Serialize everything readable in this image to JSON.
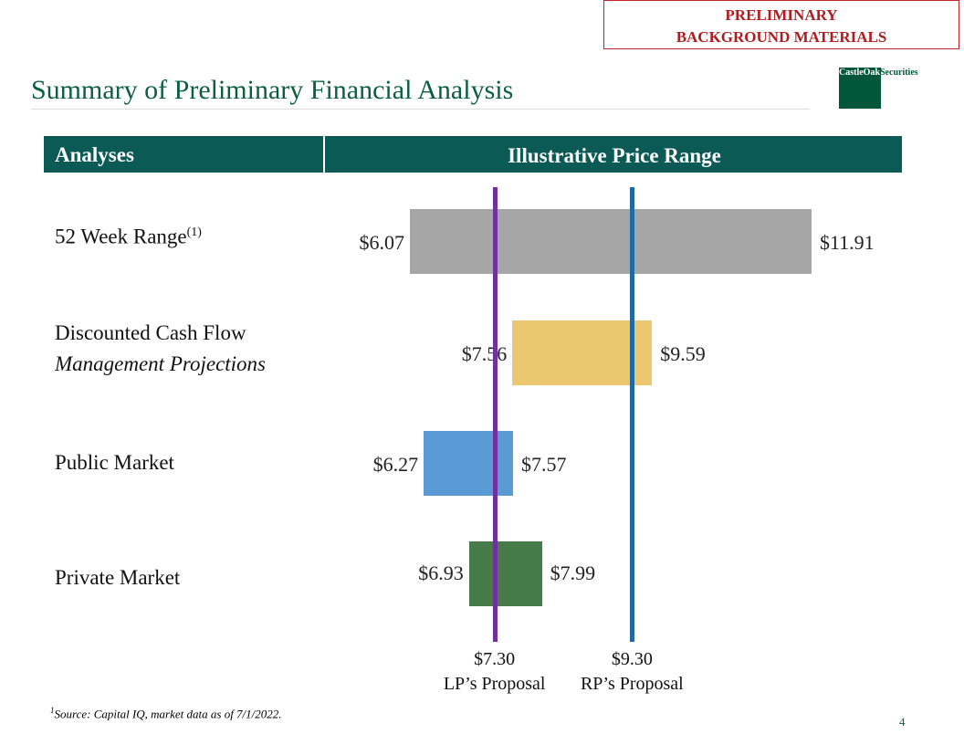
{
  "banner": {
    "line1": "PRELIMINARY",
    "line2": "BACKGROUND MATERIALS"
  },
  "logo": {
    "a": "CastleOak",
    "b": "Securities"
  },
  "title": "Summary of Preliminary Financial Analysis",
  "header": {
    "analyses": "Analyses",
    "range": "Illustrative Price Range"
  },
  "colors": {
    "gray": "#a6a6a6",
    "yellow": "#ebc76f",
    "blue": "#5b9bd5",
    "green": "#467a48",
    "lp": "#7030a0",
    "rp": "#1f6aa5"
  },
  "chart_data": {
    "type": "bar",
    "title": "Illustrative Price Range",
    "categories": [
      "52 Week Range",
      "Discounted Cash Flow / Management Projections",
      "Public Market",
      "Private Market"
    ],
    "series": [
      {
        "name": "52 Week Range",
        "low": 6.07,
        "high": 11.91,
        "low_label": "$6.07",
        "high_label": "$11.91",
        "color": "#a6a6a6"
      },
      {
        "name": "Discounted Cash Flow",
        "low": 7.56,
        "high": 9.59,
        "low_label": "$7.56",
        "high_label": "$9.59",
        "color": "#ebc76f"
      },
      {
        "name": "Public Market",
        "low": 6.27,
        "high": 7.57,
        "low_label": "$6.27",
        "high_label": "$7.57",
        "color": "#5b9bd5"
      },
      {
        "name": "Private Market",
        "low": 6.93,
        "high": 7.99,
        "low_label": "$6.93",
        "high_label": "$7.99",
        "color": "#467a48"
      }
    ],
    "reference_lines": [
      {
        "value": 7.3,
        "label": "$7.30",
        "name": "LP’s Proposal",
        "color": "#7030a0"
      },
      {
        "value": 9.3,
        "label": "$9.30",
        "name": "RP’s Proposal",
        "color": "#1f6aa5"
      }
    ]
  },
  "rows": [
    {
      "label": "52 Week Range",
      "sup": "(1)"
    },
    {
      "label": "Discounted Cash Flow",
      "sub": "Management Projections"
    },
    {
      "label": "Public Market"
    },
    {
      "label": "Private Market"
    }
  ],
  "footnote": {
    "sup": "1",
    "text": "Source: Capital IQ, market data as of 7/1/2022."
  },
  "page_number": "4"
}
